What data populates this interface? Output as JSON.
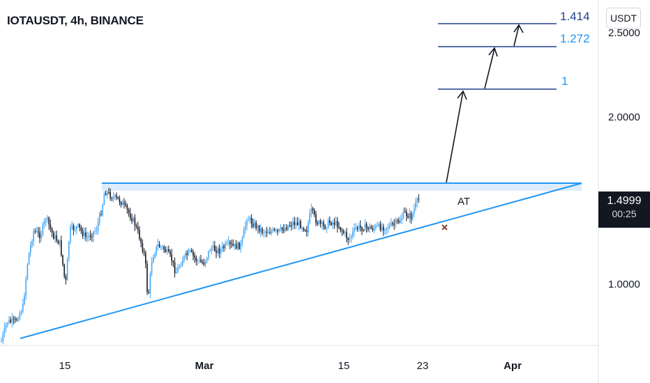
{
  "header": {
    "symbol_title": "IOTAUSDT, 4h, BINANCE"
  },
  "currency_button": {
    "label": "USDT"
  },
  "last_price": {
    "value": "1.4999",
    "countdown": "00:25",
    "color": "#131722"
  },
  "colors": {
    "accent_line": "#2196f3",
    "fib_line": "#1e3f8a",
    "candle_up": "#42a5f5",
    "candle_down": "#131722",
    "zone_fill": "#d6e9fb",
    "x_marker": "#8b4a3c"
  },
  "chart_data": {
    "type": "candlestick",
    "title": "IOTAUSDT, 4h, BINANCE",
    "y_axis": {
      "ticks": [
        1.0,
        2.0,
        2.5
      ],
      "tick_labels": [
        "1.0000",
        "2.0000",
        "2.5000"
      ]
    },
    "x_axis": {
      "tick_labels": [
        "15",
        "Mar",
        "15",
        "23",
        "Apr"
      ]
    },
    "ylim": [
      0.64,
      2.84
    ],
    "grid": false,
    "fib_levels": [
      {
        "label": "1.414",
        "color": "#1e3f8a"
      },
      {
        "label": "1.272",
        "color": "#2196f3"
      },
      {
        "label": "1",
        "color": "#2196f3"
      }
    ],
    "annotations": [
      "AT"
    ],
    "resistance_level": 1.59,
    "current_price": 1.4999
  }
}
